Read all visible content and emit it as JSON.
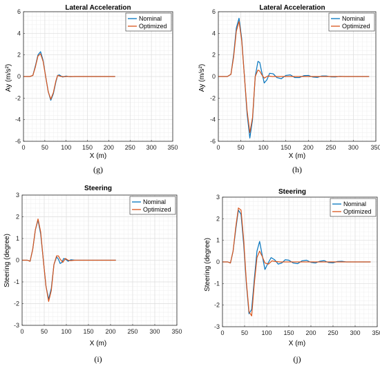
{
  "colors": {
    "nominal": "#0072BD",
    "optimized": "#D95319"
  },
  "chart_data": [
    {
      "type": "line",
      "panel": "g",
      "caption": "(g)",
      "title": "Lateral Acceleration",
      "xlabel": "X (m)",
      "ylabel": "Ay (m/s²)",
      "xlim": [
        0,
        350
      ],
      "ylim": [
        -6,
        6
      ],
      "xticks": [
        0,
        50,
        100,
        150,
        200,
        250,
        300,
        350
      ],
      "yticks": [
        -6,
        -4,
        -2,
        0,
        2,
        4,
        6
      ],
      "legend_position": "top-right",
      "grid": true,
      "series": [
        {
          "name": "Nominal",
          "x": [
            0,
            15,
            22,
            28,
            34,
            40,
            46,
            52,
            58,
            64,
            70,
            76,
            80,
            84,
            88,
            92,
            96,
            100,
            105,
            110,
            120,
            140,
            215
          ],
          "y": [
            0,
            0,
            0.1,
            1.0,
            2.0,
            2.3,
            1.5,
            0,
            -1.4,
            -2.2,
            -1.6,
            -0.5,
            0.1,
            0.15,
            0.05,
            -0.05,
            0,
            0.04,
            0,
            -0.02,
            0,
            0,
            0
          ]
        },
        {
          "name": "Optimized",
          "x": [
            0,
            15,
            22,
            28,
            34,
            40,
            46,
            52,
            58,
            64,
            70,
            76,
            80,
            84,
            88,
            92,
            96,
            100,
            110,
            140,
            215
          ],
          "y": [
            0,
            0,
            0.1,
            0.9,
            1.9,
            2.1,
            1.4,
            0,
            -1.4,
            -2.1,
            -1.5,
            -0.4,
            0.1,
            0.05,
            0,
            0,
            -0.02,
            0,
            0,
            0,
            0
          ]
        }
      ]
    },
    {
      "type": "line",
      "panel": "h",
      "caption": "(h)",
      "title": "Lateral Acceleration",
      "xlabel": "X (m)",
      "ylabel": "Ay (m/s²)",
      "xlim": [
        0,
        350
      ],
      "ylim": [
        -6,
        6
      ],
      "xticks": [
        0,
        50,
        100,
        150,
        200,
        250,
        300,
        350
      ],
      "yticks": [
        -6,
        -4,
        -2,
        0,
        2,
        4,
        6
      ],
      "legend_position": "top-right",
      "grid": true,
      "series": [
        {
          "name": "Nominal",
          "x": [
            0,
            20,
            28,
            34,
            40,
            46,
            52,
            58,
            64,
            70,
            76,
            82,
            88,
            92,
            96,
            102,
            108,
            114,
            122,
            130,
            140,
            150,
            160,
            170,
            180,
            190,
            200,
            210,
            220,
            230,
            240,
            250,
            260,
            270,
            280,
            335
          ],
          "y": [
            0,
            0,
            0.2,
            2.0,
            4.5,
            5.4,
            3.5,
            0,
            -3.5,
            -5.7,
            -4.0,
            0,
            1.4,
            1.3,
            0.5,
            -0.6,
            -0.3,
            0.3,
            0.25,
            -0.1,
            -0.2,
            0.1,
            0.15,
            -0.1,
            -0.1,
            0.08,
            0.1,
            -0.05,
            -0.08,
            0.05,
            0.05,
            -0.03,
            -0.04,
            0.02,
            0,
            0
          ]
        },
        {
          "name": "Optimized",
          "x": [
            0,
            20,
            28,
            34,
            40,
            46,
            52,
            58,
            64,
            70,
            76,
            82,
            88,
            92,
            96,
            102,
            110,
            120,
            140,
            160,
            335
          ],
          "y": [
            0,
            0,
            0.2,
            1.8,
            4.2,
            5.1,
            3.3,
            0,
            -3.2,
            -5.2,
            -3.8,
            0,
            0.6,
            0.5,
            0.2,
            -0.15,
            0.05,
            0,
            0,
            0,
            0
          ]
        }
      ]
    },
    {
      "type": "line",
      "panel": "i",
      "caption": "(i)",
      "title": "Steering",
      "xlabel": "X (m)",
      "ylabel": "Steering (degree)",
      "xlim": [
        0,
        350
      ],
      "ylim": [
        -3,
        3
      ],
      "xticks": [
        0,
        50,
        100,
        150,
        200,
        250,
        300,
        350
      ],
      "yticks": [
        -3,
        -2,
        -1,
        0,
        1,
        2,
        3
      ],
      "legend_position": "top-right",
      "grid": true,
      "series": [
        {
          "name": "Nominal",
          "x": [
            0,
            12,
            18,
            24,
            30,
            36,
            42,
            48,
            54,
            60,
            66,
            72,
            78,
            82,
            86,
            90,
            94,
            98,
            104,
            110,
            120,
            140,
            212
          ],
          "y": [
            0,
            0,
            -0.05,
            0.5,
            1.4,
            1.85,
            1.2,
            0,
            -1.2,
            -1.8,
            -1.3,
            -0.2,
            0.15,
            0.05,
            -0.15,
            -0.1,
            0.08,
            0.05,
            -0.05,
            0.02,
            0,
            0,
            0
          ]
        },
        {
          "name": "Optimized",
          "x": [
            0,
            12,
            18,
            24,
            30,
            36,
            42,
            48,
            54,
            60,
            66,
            72,
            78,
            82,
            86,
            92,
            98,
            104,
            110,
            120,
            140,
            212
          ],
          "y": [
            0,
            0,
            -0.05,
            0.5,
            1.4,
            1.9,
            1.3,
            0,
            -1.2,
            -1.9,
            -1.4,
            -0.2,
            0.2,
            0.2,
            0.05,
            -0.1,
            0.08,
            0,
            -0.02,
            0,
            0,
            0
          ]
        }
      ]
    },
    {
      "type": "line",
      "panel": "j",
      "caption": "(j)",
      "title": "Steering",
      "xlabel": "X (m)",
      "ylabel": "Steering (degree)",
      "xlim": [
        0,
        350
      ],
      "ylim": [
        -3,
        3
      ],
      "xticks": [
        0,
        50,
        100,
        150,
        200,
        250,
        300,
        350
      ],
      "yticks": [
        -3,
        -2,
        -1,
        0,
        1,
        2,
        3
      ],
      "legend_position": "top-right",
      "grid": true,
      "series": [
        {
          "name": "Nominal",
          "x": [
            0,
            12,
            18,
            24,
            30,
            36,
            42,
            48,
            54,
            60,
            66,
            72,
            78,
            84,
            90,
            96,
            102,
            110,
            118,
            126,
            134,
            142,
            150,
            160,
            170,
            180,
            190,
            200,
            210,
            220,
            230,
            240,
            250,
            260,
            270,
            280,
            335
          ],
          "y": [
            0,
            0,
            -0.05,
            0.5,
            1.5,
            2.4,
            2.2,
            0.8,
            -1.0,
            -2.4,
            -2.2,
            -0.8,
            0.5,
            0.95,
            0.3,
            -0.35,
            -0.1,
            0.2,
            0.1,
            -0.1,
            -0.05,
            0.1,
            0.08,
            -0.05,
            -0.08,
            0.05,
            0.08,
            -0.02,
            -0.05,
            0.03,
            0.06,
            -0.03,
            -0.04,
            0.02,
            0.03,
            0,
            0
          ]
        },
        {
          "name": "Optimized",
          "x": [
            0,
            12,
            18,
            24,
            30,
            36,
            42,
            48,
            54,
            60,
            66,
            72,
            78,
            84,
            90,
            96,
            104,
            112,
            120,
            130,
            150,
            335
          ],
          "y": [
            0,
            0,
            -0.05,
            0.5,
            1.6,
            2.5,
            2.4,
            1.0,
            -0.9,
            -2.3,
            -2.5,
            -1.0,
            0.2,
            0.5,
            0.25,
            -0.05,
            -0.1,
            0.05,
            0.02,
            0,
            0,
            0
          ]
        }
      ]
    }
  ]
}
